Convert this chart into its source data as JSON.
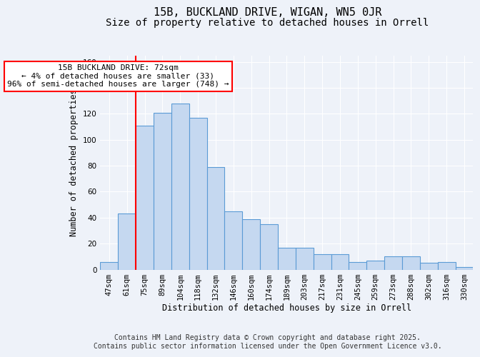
{
  "title_line1": "15B, BUCKLAND DRIVE, WIGAN, WN5 0JR",
  "title_line2": "Size of property relative to detached houses in Orrell",
  "xlabel": "Distribution of detached houses by size in Orrell",
  "ylabel": "Number of detached properties",
  "categories": [
    "47sqm",
    "61sqm",
    "75sqm",
    "89sqm",
    "104sqm",
    "118sqm",
    "132sqm",
    "146sqm",
    "160sqm",
    "174sqm",
    "189sqm",
    "203sqm",
    "217sqm",
    "231sqm",
    "245sqm",
    "259sqm",
    "273sqm",
    "288sqm",
    "302sqm",
    "316sqm",
    "330sqm"
  ],
  "values": [
    6,
    43,
    111,
    121,
    128,
    117,
    79,
    45,
    39,
    35,
    17,
    17,
    12,
    12,
    6,
    7,
    10,
    10,
    5,
    6,
    2
  ],
  "bar_color": "#c5d8f0",
  "bar_edge_color": "#5b9bd5",
  "annotation_text": "15B BUCKLAND DRIVE: 72sqm\n← 4% of detached houses are smaller (33)\n96% of semi-detached houses are larger (748) →",
  "annotation_box_color": "white",
  "annotation_box_edge_color": "red",
  "vline_color": "red",
  "ylim": [
    0,
    165
  ],
  "yticks": [
    0,
    20,
    40,
    60,
    80,
    100,
    120,
    140,
    160
  ],
  "background_color": "#eef2f9",
  "grid_color": "white",
  "footnote": "Contains HM Land Registry data © Crown copyright and database right 2025.\nContains public sector information licensed under the Open Government Licence v3.0.",
  "title_fontsize": 11,
  "subtitle_fontsize": 10,
  "axis_label_fontsize": 8.5,
  "tick_fontsize": 7.5,
  "annotation_fontsize": 8,
  "footnote_fontsize": 7
}
